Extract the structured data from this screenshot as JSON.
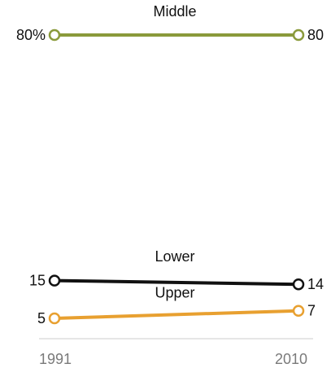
{
  "chart_data": {
    "type": "line",
    "x": [
      "1991",
      "2010"
    ],
    "series": [
      {
        "name": "Middle",
        "values": [
          80,
          80
        ],
        "value_labels": [
          "80%",
          "80"
        ],
        "color": "#8a9a3b"
      },
      {
        "name": "Lower",
        "values": [
          15,
          14
        ],
        "value_labels": [
          "15",
          "14"
        ],
        "color": "#111111"
      },
      {
        "name": "Upper",
        "values": [
          5,
          7
        ],
        "value_labels": [
          "5",
          "7"
        ],
        "color": "#e8a030"
      }
    ],
    "title": "",
    "xlabel": "",
    "ylabel": "",
    "ylim": [
      0,
      85
    ],
    "grid": false,
    "legend": "inline"
  },
  "colors": {
    "axis": "#cccccc",
    "tick_text": "#7a7a7a",
    "text": "#111111"
  }
}
